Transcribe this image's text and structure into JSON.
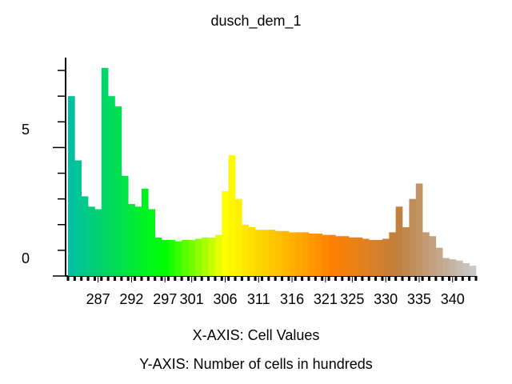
{
  "chart_data": {
    "type": "histogram",
    "title": "dusch_dem_1",
    "x_label": "X-AXIS: Cell Values",
    "y_label": "Y-AXIS: Number of cells in hundreds",
    "bins": [
      282.5,
      283.5,
      284.5,
      285.5,
      286.5,
      287.5,
      288.5,
      289.5,
      290.5,
      291.5,
      292.5,
      293.5,
      294.5,
      295.5,
      296.5,
      297.5,
      298.5,
      299.5,
      300.5,
      301.5,
      302.5,
      303.5,
      304.5,
      305.5,
      306.5,
      307.5,
      308.5,
      309.5,
      310.5,
      311.5,
      312.5,
      313.5,
      314.5,
      315.5,
      316.5,
      317.5,
      318.5,
      319.5,
      320.5,
      321.5,
      322.5,
      323.5,
      324.5,
      325.5,
      326.5,
      327.5,
      328.5,
      329.5,
      330.5,
      331.5,
      332.5,
      333.5,
      334.5,
      335.5,
      336.5,
      337.5,
      338.5,
      339.5,
      340.5,
      341.5,
      342.5,
      343.5
    ],
    "values": [
      7.0,
      4.5,
      3.1,
      2.7,
      2.6,
      8.1,
      7.0,
      6.6,
      3.9,
      2.8,
      2.7,
      3.4,
      2.6,
      1.5,
      1.4,
      1.4,
      1.35,
      1.4,
      1.4,
      1.45,
      1.5,
      1.5,
      1.6,
      3.3,
      4.7,
      3.0,
      2.0,
      1.9,
      1.8,
      1.8,
      1.8,
      1.75,
      1.75,
      1.7,
      1.7,
      1.7,
      1.65,
      1.65,
      1.6,
      1.6,
      1.55,
      1.55,
      1.5,
      1.5,
      1.45,
      1.4,
      1.4,
      1.45,
      1.7,
      2.7,
      1.9,
      3.0,
      3.6,
      1.7,
      1.55,
      1.1,
      0.7,
      0.65,
      0.6,
      0.5,
      0.4
    ],
    "xlim": [
      282.5,
      343.5
    ],
    "ylim": [
      0,
      8.5
    ],
    "xticks": [
      287,
      292,
      297,
      301,
      306,
      311,
      316,
      321,
      325,
      330,
      335,
      340
    ],
    "yticks": [
      0,
      5
    ],
    "y_minor_ticks": [
      1,
      2,
      3,
      4,
      6,
      7,
      8
    ],
    "color_stops": [
      [
        283,
        "#00c0a0"
      ],
      [
        297,
        "#00ff00"
      ],
      [
        306,
        "#ffff00"
      ],
      [
        322,
        "#ff8000"
      ],
      [
        332,
        "#c08040"
      ],
      [
        343,
        "#c8c8c8"
      ]
    ]
  }
}
